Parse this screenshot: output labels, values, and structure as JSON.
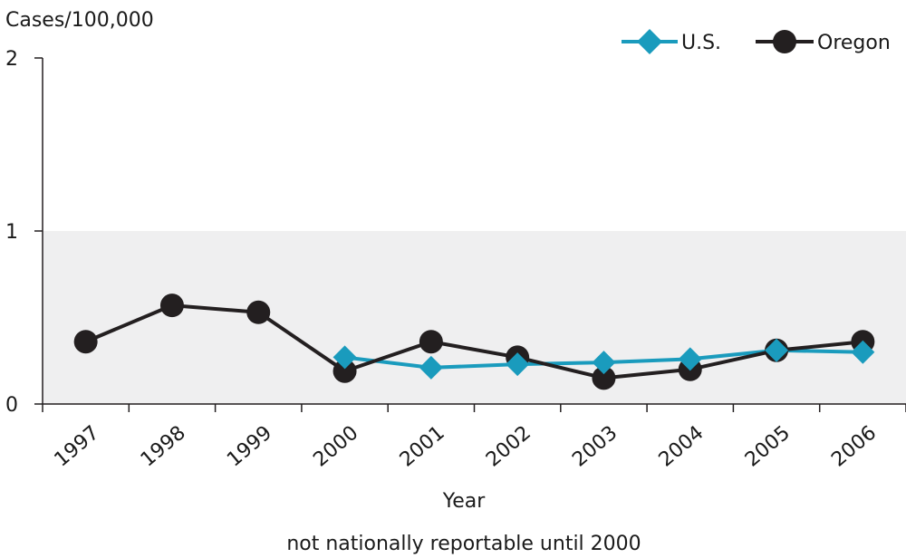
{
  "chart_data": {
    "type": "line",
    "ylabel": "Cases/100,000",
    "xlabel": "Year",
    "note": "not nationally reportable until 2000",
    "categories": [
      "1997",
      "1998",
      "1999",
      "2000",
      "2001",
      "2002",
      "2003",
      "2004",
      "2005",
      "2006"
    ],
    "ylim": [
      0,
      2
    ],
    "yticks": [
      "0",
      "1",
      "2"
    ],
    "shaded_band": [
      0,
      1
    ],
    "legend_position": "top-right",
    "series": [
      {
        "name": "U.S.",
        "color": "#1a9bbd",
        "marker": "diamond",
        "values": [
          null,
          null,
          null,
          0.27,
          0.21,
          0.23,
          0.24,
          0.26,
          0.31,
          0.3
        ]
      },
      {
        "name": "Oregon",
        "color": "#231f20",
        "marker": "circle",
        "values": [
          0.36,
          0.57,
          0.53,
          0.19,
          0.36,
          0.27,
          0.15,
          0.2,
          0.31,
          0.36
        ]
      }
    ]
  },
  "colors": {
    "band": "#efeff0",
    "axis": "#231f20"
  }
}
